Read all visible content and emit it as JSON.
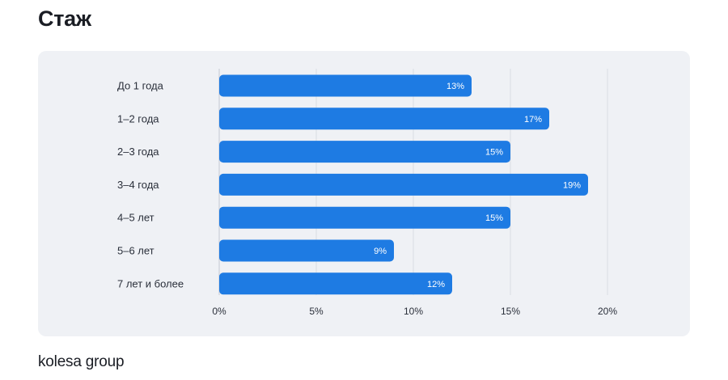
{
  "page": {
    "title": "Стаж",
    "footer_logo": "kolesa group"
  },
  "colors": {
    "bar": "#1e7be3",
    "panel": "#eff1f5",
    "grid": "#d9dde4",
    "axis": "#c4c9d2"
  },
  "chart_data": {
    "type": "bar",
    "orientation": "horizontal",
    "title": "",
    "xlabel": "",
    "ylabel": "",
    "categories": [
      "До 1 года",
      "1–2 года",
      "2–3 года",
      "3–4 года",
      "4–5 лет",
      "5–6 лет",
      "7 лет и более"
    ],
    "values": [
      13,
      17,
      15,
      19,
      15,
      9,
      12
    ],
    "value_labels": [
      "13%",
      "17%",
      "15%",
      "19%",
      "15%",
      "9%",
      "12%"
    ],
    "xlim": [
      0,
      20
    ],
    "xticks": [
      0,
      5,
      10,
      15,
      20
    ],
    "xtick_labels": [
      "0%",
      "5%",
      "10%",
      "15%",
      "20%"
    ],
    "grid": true,
    "legend": "none"
  }
}
